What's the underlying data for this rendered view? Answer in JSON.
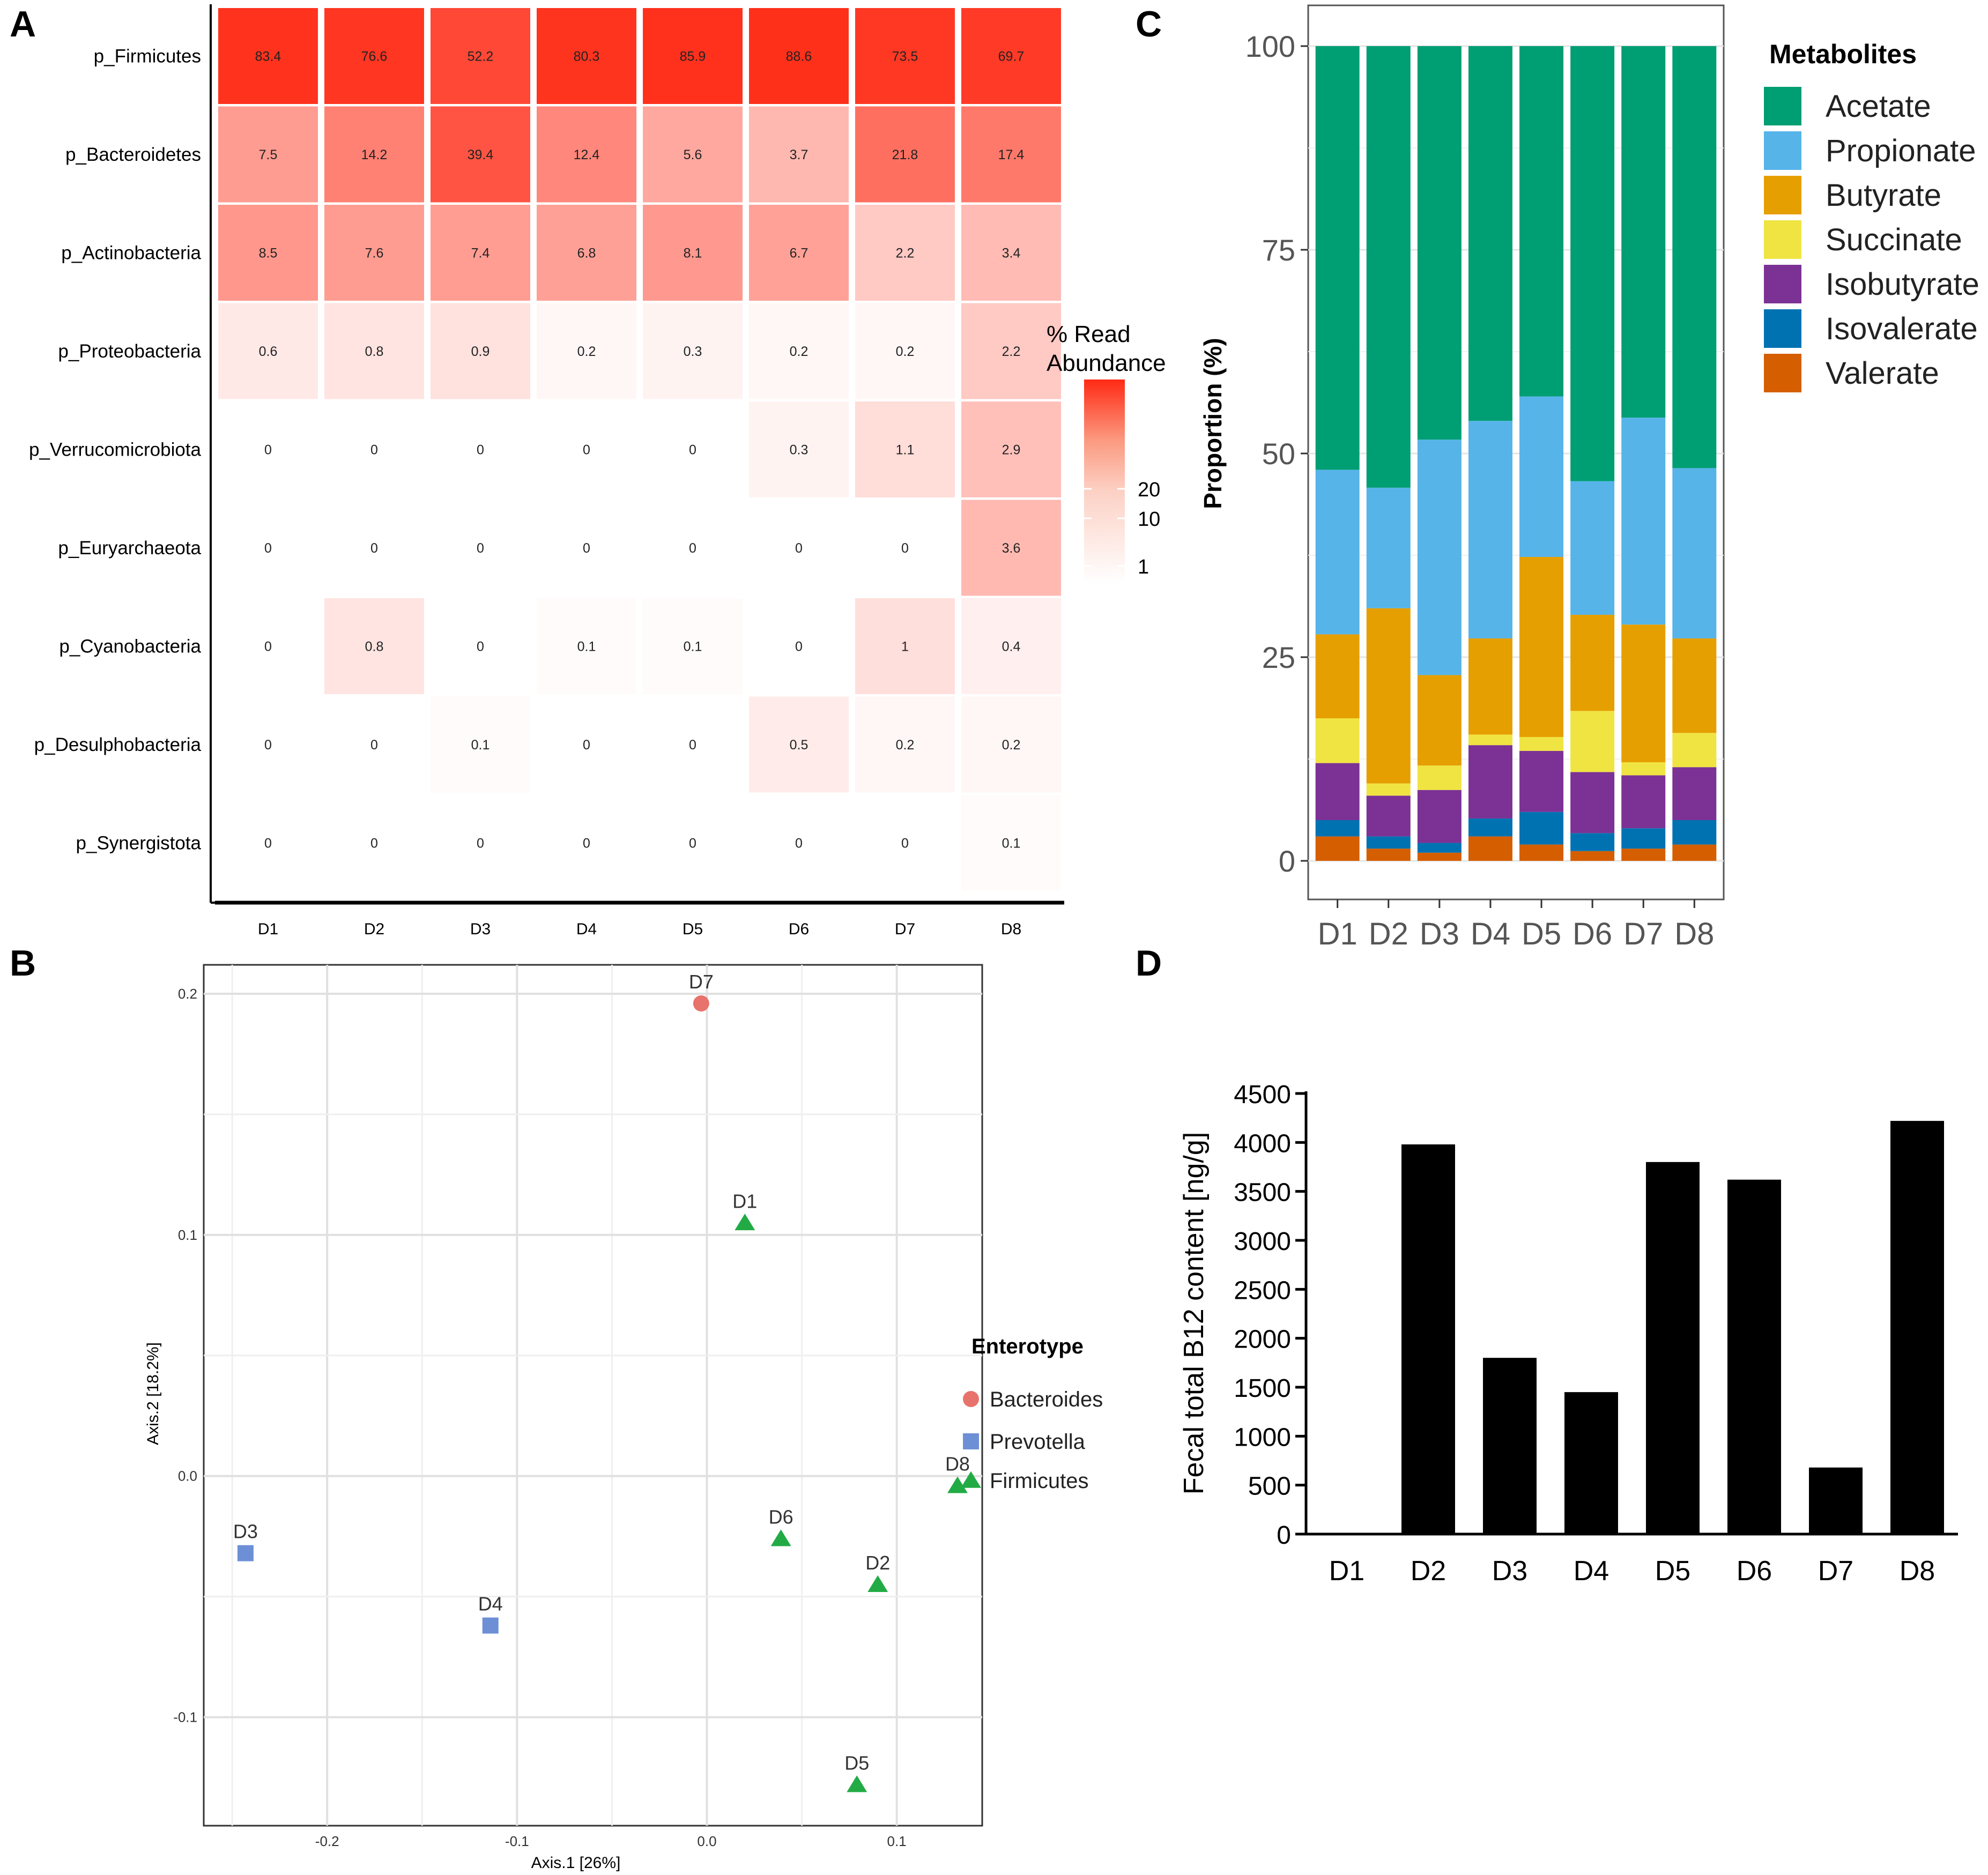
{
  "panels": {
    "a": "A",
    "b": "B",
    "c": "C",
    "d": "D"
  },
  "chart_data": [
    {
      "panel": "A",
      "type": "heatmap",
      "x": [
        "D1",
        "D2",
        "D3",
        "D4",
        "D5",
        "D6",
        "D7",
        "D8"
      ],
      "y": [
        "p_Firmicutes",
        "p_Bacteroidetes",
        "p_Actinobacteria",
        "p_Proteobacteria",
        "p_Verrucomicrobiota",
        "p_Euryarchaeota",
        "p_Cyanobacteria",
        "p_Desulphobacteria",
        "p_Synergistota"
      ],
      "values": [
        [
          "83.4",
          "76.6",
          "52.2",
          "80.3",
          "85.9",
          "88.6",
          "73.5",
          "69.7"
        ],
        [
          "7.5",
          "14.2",
          "39.4",
          "12.4",
          "5.6",
          "3.7",
          "21.8",
          "17.4"
        ],
        [
          "8.5",
          "7.6",
          "7.4",
          "6.8",
          "8.1",
          "6.7",
          "2.2",
          "3.4"
        ],
        [
          "0.6",
          "0.8",
          "0.9",
          "0.2",
          "0.3",
          "0.2",
          "0.2",
          "2.2"
        ],
        [
          "0",
          "0",
          "0",
          "0",
          "0",
          "0.3",
          "1.1",
          "2.9"
        ],
        [
          "0",
          "0",
          "0",
          "0",
          "0",
          "0",
          "0",
          "3.6"
        ],
        [
          "0",
          "0.8",
          "0",
          "0.1",
          "0.1",
          "0",
          "1",
          "0.4"
        ],
        [
          "0",
          "0",
          "0.1",
          "0",
          "0",
          "0.5",
          "0.2",
          "0.2"
        ],
        [
          "0",
          "0",
          "0",
          "0",
          "0",
          "0",
          "0",
          "0.1"
        ]
      ],
      "legend": {
        "title_line1": "% Read",
        "title_line2": "Abundance",
        "ticks": [
          "20",
          "10",
          "1"
        ],
        "tick_values": [
          20,
          10,
          1
        ],
        "color_low": "#ffffff",
        "color_high": "#ff2a14"
      }
    },
    {
      "panel": "B",
      "type": "scatter",
      "xlabel": "Axis.1  [26%]",
      "ylabel": "Axis.2  [18.2%]",
      "xlim": [
        -0.265,
        0.145
      ],
      "ylim": [
        -0.145,
        0.212
      ],
      "xticks": [
        -0.2,
        -0.1,
        0.0,
        0.1
      ],
      "xtick_labels": [
        "-0.2",
        "-0.1",
        "0.0",
        "0.1"
      ],
      "yticks": [
        -0.1,
        0.0,
        0.1,
        0.2
      ],
      "ytick_labels": [
        "-0.1",
        "0.0",
        "0.1",
        "0.2"
      ],
      "legend_title": "Enterotype",
      "groups": [
        {
          "name": "Bacteroides",
          "color": "#e8726c",
          "shape": "circle"
        },
        {
          "name": "Prevotella",
          "color": "#6d8fd6",
          "shape": "square"
        },
        {
          "name": "Firmicutes",
          "color": "#22ab45",
          "shape": "triangle"
        }
      ],
      "points": [
        {
          "label": "D7",
          "x": -0.003,
          "y": 0.196,
          "group": "Bacteroides"
        },
        {
          "label": "D1",
          "x": 0.02,
          "y": 0.105,
          "group": "Firmicutes"
        },
        {
          "label": "D3",
          "x": -0.243,
          "y": -0.032,
          "group": "Prevotella"
        },
        {
          "label": "D4",
          "x": -0.114,
          "y": -0.062,
          "group": "Prevotella"
        },
        {
          "label": "D6",
          "x": 0.039,
          "y": -0.026,
          "group": "Firmicutes"
        },
        {
          "label": "D2",
          "x": 0.09,
          "y": -0.045,
          "group": "Firmicutes"
        },
        {
          "label": "D8",
          "x": 0.132,
          "y": -0.004,
          "group": "Firmicutes"
        },
        {
          "label": "D5",
          "x": 0.079,
          "y": -0.128,
          "group": "Firmicutes"
        }
      ]
    },
    {
      "panel": "C",
      "type": "bar",
      "stacked": true,
      "categories": [
        "D1",
        "D2",
        "D3",
        "D4",
        "D5",
        "D6",
        "D7",
        "D8"
      ],
      "ylabel": "Proportion (%)",
      "ylim": [
        0,
        100
      ],
      "yticks": [
        0,
        25,
        50,
        75,
        100
      ],
      "ytick_labels": [
        "0",
        "25",
        "50",
        "75",
        "100"
      ],
      "legend_title": "Metabolites",
      "series": [
        {
          "name": "Valerate",
          "color": "#d55e00",
          "values": [
            3,
            1.5,
            1,
            3,
            2,
            1.2,
            1.5,
            2
          ]
        },
        {
          "name": "Isovalerate",
          "color": "#0072b2",
          "values": [
            2,
            1.5,
            1.2,
            2.2,
            4,
            2.2,
            2.5,
            3
          ]
        },
        {
          "name": "Isobutyrate",
          "color": "#7b3294",
          "values": [
            7,
            5,
            6.5,
            9,
            7.5,
            7.5,
            6.5,
            6.5
          ]
        },
        {
          "name": "Succinate",
          "color": "#f0e442",
          "values": [
            5.5,
            1.5,
            3,
            1.3,
            1.7,
            7.5,
            1.6,
            4.2
          ]
        },
        {
          "name": "Butyrate",
          "color": "#e69f00",
          "values": [
            10.3,
            21.5,
            11.1,
            11.8,
            22.1,
            11.8,
            16.9,
            11.6
          ]
        },
        {
          "name": "Propionate",
          "color": "#56b4e9",
          "values": [
            20.2,
            14.8,
            28.9,
            26.7,
            19.7,
            16.4,
            25.4,
            20.9
          ]
        },
        {
          "name": "Acetate",
          "color": "#009e73",
          "values": [
            52,
            54.2,
            48.3,
            46,
            43,
            53.4,
            45.6,
            51.8
          ]
        }
      ],
      "legend_order": [
        "Acetate",
        "Propionate",
        "Butyrate",
        "Succinate",
        "Isobutyrate",
        "Isovalerate",
        "Valerate"
      ]
    },
    {
      "panel": "D",
      "type": "bar",
      "categories": [
        "D1",
        "D2",
        "D3",
        "D4",
        "D5",
        "D6",
        "D7",
        "D8"
      ],
      "values": [
        0,
        3980,
        1800,
        1450,
        3800,
        3620,
        680,
        4220
      ],
      "ylabel": "Fecal total B12 content [ng/g]",
      "ylim": [
        0,
        4500
      ],
      "yticks": [
        0,
        500,
        1000,
        1500,
        2000,
        2500,
        3000,
        3500,
        4000,
        4500
      ],
      "ytick_labels": [
        "0",
        "500",
        "1000",
        "1500",
        "2000",
        "2500",
        "3000",
        "3500",
        "4000",
        "4500"
      ],
      "color": "#000000"
    }
  ]
}
